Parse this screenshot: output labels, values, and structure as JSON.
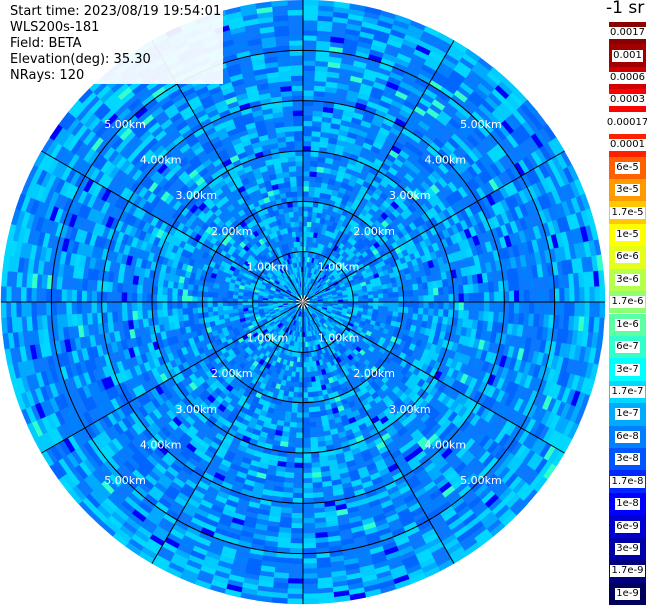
{
  "info": {
    "start_time": "Start time: 2023/08/19 19:54:01",
    "station": "WLS200s-181",
    "field": "Field: BETA",
    "elevation": "Elevation(deg): 35.30",
    "nrays": "NRays: 120"
  },
  "colorbar": {
    "unit": "-1 sr",
    "labels": [
      "0.0017",
      "0.001",
      "0.0006",
      "0.0003",
      "0.00017",
      "0.0001",
      "6e-5",
      "3e-5",
      "1.7e-5",
      "1e-5",
      "6e-6",
      "3e-6",
      "1.7e-6",
      "1e-6",
      "6e-7",
      "3e-7",
      "1.7e-7",
      "1e-7",
      "6e-8",
      "3e-8",
      "1.7e-8",
      "1e-8",
      "6e-9",
      "3e-9",
      "1.7e-9",
      "1e-9"
    ],
    "colors": [
      "#8b0000",
      "#a00000",
      "#d00000",
      "#ff0000",
      "#ffffff",
      "#ff2000",
      "#ff6000",
      "#ff9a00",
      "#ffc800",
      "#ffff00",
      "#e6ff1a",
      "#b5ff4d",
      "#8cff73",
      "#5cffa3",
      "#33ffcc",
      "#00ffff",
      "#00d8ff",
      "#00aaff",
      "#0080ff",
      "#0055ff",
      "#0028ff",
      "#0000ff",
      "#0000d0",
      "#0000a8",
      "#000080",
      "#00005a"
    ]
  },
  "chart_data": {
    "type": "ppi",
    "range_rings_km": [
      1,
      2,
      3,
      4,
      5
    ],
    "ring_labels": [
      "1.00km",
      "2.00km",
      "3.00km",
      "4.00km",
      "5.00km"
    ],
    "max_range_km": 6,
    "spoke_angles_deg": [
      0,
      30,
      60,
      90,
      120,
      150,
      180,
      210,
      240,
      270,
      300,
      330
    ],
    "n_rays": 120,
    "value_range": [
      "6e-8",
      "3e-7"
    ],
    "dominant_colors": [
      "#0080ff",
      "#0066ff",
      "#00aaff",
      "#00ccff",
      "#00d8ff"
    ]
  }
}
